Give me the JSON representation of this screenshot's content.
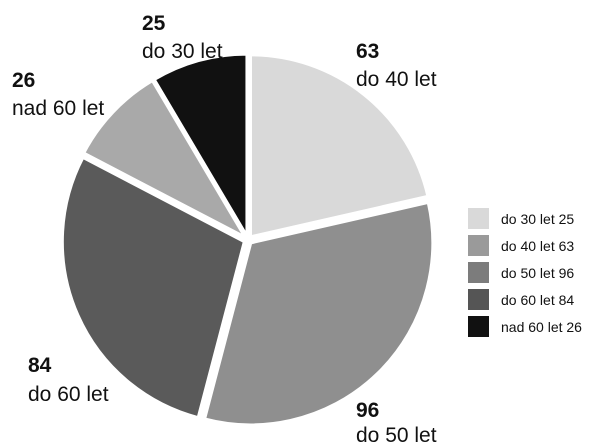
{
  "chart_data": {
    "type": "pie",
    "title": "",
    "slices": [
      {
        "name": "do 30 let",
        "value": 25,
        "color": "#111111",
        "legend_color": "#d9d9d9"
      },
      {
        "name": "do 40 let",
        "value": 63,
        "color": "#d9d9d9",
        "legend_color": "#9a9a9a"
      },
      {
        "name": "do 50 let",
        "value": 96,
        "color": "#8f8f8f",
        "legend_color": "#7c7c7c"
      },
      {
        "name": "do 60 let",
        "value": 84,
        "color": "#5a5a5a",
        "legend_color": "#555555"
      },
      {
        "name": "nad 60 let",
        "value": 26,
        "color": "#a9a9a9",
        "legend_color": "#111111"
      }
    ],
    "callouts": [
      {
        "value": "25",
        "label": "do 30 let"
      },
      {
        "value": "63",
        "label": "do 40 let"
      },
      {
        "value": "96",
        "label": "do 50 let"
      },
      {
        "value": "84",
        "label": "do 60 let"
      },
      {
        "value": "26",
        "label": "nad 60 let"
      }
    ],
    "legend": {
      "position": "right",
      "items": [
        {
          "text": "do 30 let 25",
          "color": "#d9d9d9"
        },
        {
          "text": "do 40 let 63",
          "color": "#9a9a9a"
        },
        {
          "text": "do 50 let 96",
          "color": "#7c7c7c"
        },
        {
          "text": "do 60 let 84",
          "color": "#555555"
        },
        {
          "text": "nad 60 let 26",
          "color": "#111111"
        }
      ]
    }
  }
}
